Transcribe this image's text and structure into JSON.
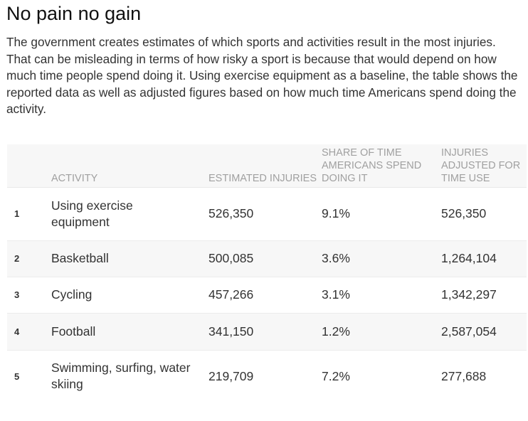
{
  "title": "No pain no gain",
  "description": "The government creates estimates of which sports and activities result in the most injuries. That can be misleading in terms of how risky a sport is because that would depend on how much time people spend doing it. Using exercise equipment as a baseline, the table shows the reported data as well as adjusted figures based on how much time Americans spend doing the activity.",
  "table": {
    "headers": [
      "",
      "Activity",
      "Estimated injuries",
      "Share of time Americans spend doing it",
      "Injuries adjusted for time use"
    ],
    "rows": [
      {
        "rank": "1",
        "activity": "Using exercise equipment",
        "injuries": "526,350",
        "share": "9.1%",
        "adjusted": "526,350"
      },
      {
        "rank": "2",
        "activity": "Basketball",
        "injuries": "500,085",
        "share": "3.6%",
        "adjusted": "1,264,104"
      },
      {
        "rank": "3",
        "activity": "Cycling",
        "injuries": "457,266",
        "share": "3.1%",
        "adjusted": "1,342,297"
      },
      {
        "rank": "4",
        "activity": "Football",
        "injuries": "341,150",
        "share": "1.2%",
        "adjusted": "2,587,054"
      },
      {
        "rank": "5",
        "activity": "Swimming, surfing, water skiing",
        "injuries": "219,709",
        "share": "7.2%",
        "adjusted": "277,688"
      }
    ]
  }
}
